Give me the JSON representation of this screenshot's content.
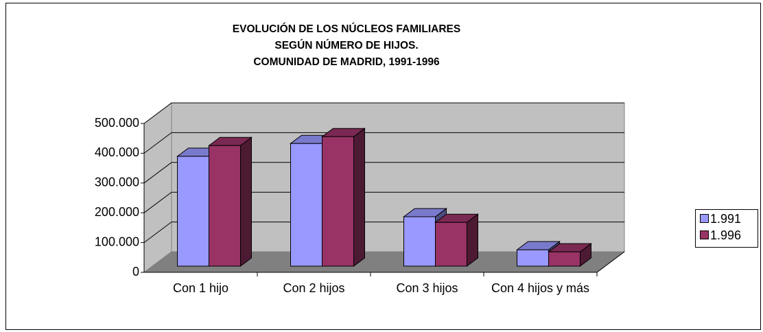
{
  "chart_data": {
    "type": "bar3d",
    "title_lines": [
      "EVOLUCIÓN DE LOS NÚCLEOS FAMILIARES",
      "SEGÚN NÚMERO DE HIJOS.",
      "COMUNIDAD DE MADRID, 1991-1996"
    ],
    "categories": [
      "Con 1 hijo",
      "Con 2 hijos",
      "Con 3 hijos",
      "Con 4 hijos y más"
    ],
    "series": [
      {
        "name": "1.991",
        "color": "#9999ff",
        "values": [
          369000,
          412000,
          166000,
          55000
        ]
      },
      {
        "name": "1.996",
        "color": "#993366",
        "values": [
          405000,
          435000,
          147000,
          48000
        ]
      }
    ],
    "ylim": [
      0,
      500000
    ],
    "yticks": [
      0,
      {
        "value": 100000,
        "label": "100.000"
      },
      {
        "value": 200000,
        "label": "200.000"
      },
      {
        "value": 300000,
        "label": "300.000"
      },
      {
        "value": 400000,
        "label": "400.000"
      },
      {
        "value": 500000,
        "label": "500.000"
      }
    ],
    "grid": true,
    "legend": "right"
  }
}
